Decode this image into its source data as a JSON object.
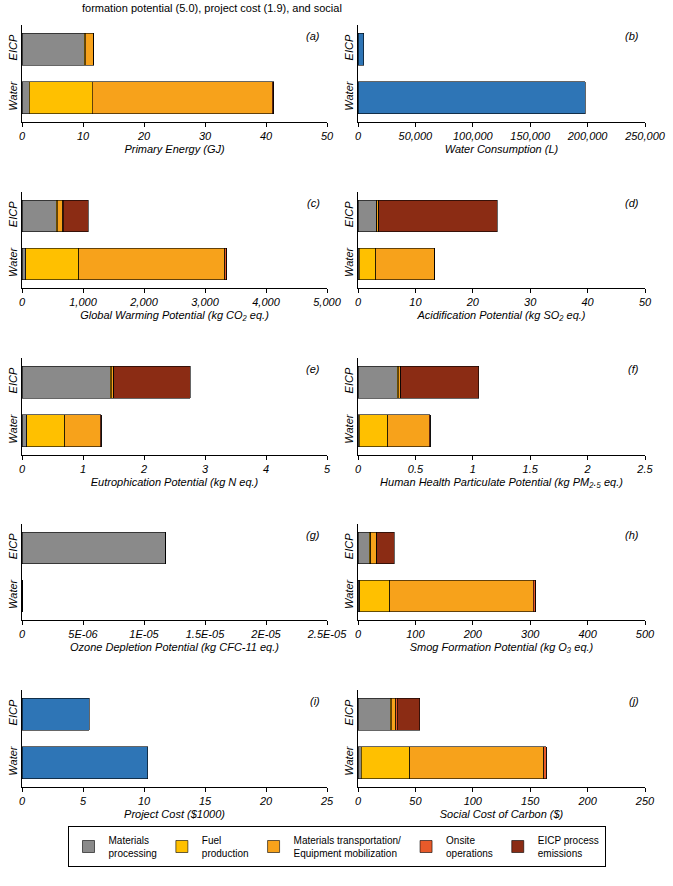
{
  "caption": "formation potential (5.0), project cost (1.9), and social",
  "chart_data": [
    {
      "type": "bar",
      "label": "(a)",
      "orientation": "horizontal",
      "stacked": true,
      "grid": false,
      "legend": "bottom",
      "categories": [
        "EICP",
        "Water"
      ],
      "xlabel": "Primary Energy (GJ)",
      "xlim": [
        0,
        50
      ],
      "xticks": [
        0,
        10,
        20,
        30,
        40,
        50
      ],
      "series": [
        {
          "name": "Materials\nprocessing",
          "color": "#8a8a8a",
          "values": [
            10.2,
            1.2
          ]
        },
        {
          "name": "Fuel\nproduction",
          "color": "#ffc000",
          "values": [
            0.2,
            10.3
          ]
        },
        {
          "name": "Materials transportation/\nEquipment mobilization",
          "color": "#f7a21b",
          "values": [
            1.3,
            29.5
          ]
        },
        {
          "name": "Onsite\noperations",
          "color": "#e85a2a",
          "values": [
            0.05,
            0.3
          ]
        },
        {
          "name": "EICP process\nemissions",
          "color": "#8b2c14",
          "values": [
            0,
            0
          ]
        }
      ]
    },
    {
      "type": "bar",
      "label": "(b)",
      "orientation": "horizontal",
      "stacked": true,
      "grid": false,
      "categories": [
        "EICP",
        "Water"
      ],
      "xlabel": "Water Consumption (L)",
      "xlim": [
        0,
        250000
      ],
      "xticks": [
        0,
        {
          "value": 50000,
          "label": "50,000"
        },
        {
          "value": 100000,
          "label": "100,000"
        },
        {
          "value": 150000,
          "label": "150,000"
        },
        {
          "value": 200000,
          "label": "200,000"
        },
        {
          "value": 250000,
          "label": "250,000"
        }
      ],
      "series": [
        {
          "color": "#2e75b6",
          "values": [
            5000,
            198000
          ]
        }
      ]
    },
    {
      "type": "bar",
      "label": "(c)",
      "orientation": "horizontal",
      "stacked": true,
      "grid": false,
      "categories": [
        "EICP",
        "Water"
      ],
      "xlabel": "Global Warming Potential (kg CO₂ eq.)",
      "xlim": [
        0,
        5000
      ],
      "xticks": [
        0,
        {
          "value": 1000,
          "label": "1,000"
        },
        {
          "value": 2000,
          "label": "2,000"
        },
        {
          "value": 3000,
          "label": "3,000"
        },
        {
          "value": 4000,
          "label": "4,000"
        },
        {
          "value": 5000,
          "label": "5,000"
        }
      ],
      "series": [
        {
          "name": "Materials\nprocessing",
          "color": "#8a8a8a",
          "values": [
            560,
            60
          ]
        },
        {
          "name": "Fuel\nproduction",
          "color": "#ffc000",
          "values": [
            20,
            870
          ]
        },
        {
          "name": "Materials transportation/\nEquipment mobilization",
          "color": "#f7a21b",
          "values": [
            90,
            2390
          ]
        },
        {
          "name": "Onsite\noperations",
          "color": "#e85a2a",
          "values": [
            5,
            40
          ]
        },
        {
          "name": "EICP process\nemissions",
          "color": "#8b2c14",
          "values": [
            410,
            0
          ]
        }
      ]
    },
    {
      "type": "bar",
      "label": "(d)",
      "orientation": "horizontal",
      "stacked": true,
      "grid": false,
      "categories": [
        "EICP",
        "Water"
      ],
      "xlabel": "Acidification Potential (kg SO₂ eq.)",
      "xlim": [
        0,
        50
      ],
      "xticks": [
        0,
        10,
        20,
        30,
        40,
        50
      ],
      "series": [
        {
          "name": "Materials\nprocessing",
          "color": "#8a8a8a",
          "values": [
            3.2,
            0.2
          ]
        },
        {
          "name": "Fuel\nproduction",
          "color": "#ffc000",
          "values": [
            0.1,
            2.9
          ]
        },
        {
          "name": "Materials transportation/\nEquipment mobilization",
          "color": "#f7a21b",
          "values": [
            0.3,
            10.2
          ]
        },
        {
          "name": "Onsite\noperations",
          "color": "#e85a2a",
          "values": [
            0.02,
            0.1
          ]
        },
        {
          "name": "EICP process\nemissions",
          "color": "#8b2c14",
          "values": [
            20.6,
            0
          ]
        }
      ]
    },
    {
      "type": "bar",
      "label": "(e)",
      "orientation": "horizontal",
      "stacked": true,
      "grid": false,
      "categories": [
        "EICP",
        "Water"
      ],
      "xlabel": "Eutrophication Potential (kg N eq.)",
      "xlim": [
        0,
        5
      ],
      "xticks": [
        0,
        1,
        2,
        3,
        4,
        5
      ],
      "series": [
        {
          "name": "Materials\nprocessing",
          "color": "#8a8a8a",
          "values": [
            1.45,
            0.08
          ]
        },
        {
          "name": "Fuel\nproduction",
          "color": "#ffc000",
          "values": [
            0.01,
            0.62
          ]
        },
        {
          "name": "Materials transportation/\nEquipment mobilization",
          "color": "#f7a21b",
          "values": [
            0.04,
            0.58
          ]
        },
        {
          "name": "Onsite\noperations",
          "color": "#e85a2a",
          "values": [
            0.005,
            0.02
          ]
        },
        {
          "name": "EICP process\nemissions",
          "color": "#8b2c14",
          "values": [
            1.25,
            0
          ]
        }
      ]
    },
    {
      "type": "bar",
      "label": "(f)",
      "orientation": "horizontal",
      "stacked": true,
      "grid": false,
      "categories": [
        "EICP",
        "Water"
      ],
      "xlabel": "Human Health Particulate Potential (kg PM₂.₅ eq.)",
      "xlim": [
        0,
        2.5
      ],
      "xticks": [
        0,
        0.5,
        1,
        1.5,
        2,
        2.5
      ],
      "series": [
        {
          "name": "Materials\nprocessing",
          "color": "#8a8a8a",
          "values": [
            0.34,
            0.01
          ]
        },
        {
          "name": "Fuel\nproduction",
          "color": "#ffc000",
          "values": [
            0.01,
            0.25
          ]
        },
        {
          "name": "Materials transportation/\nEquipment mobilization",
          "color": "#f7a21b",
          "values": [
            0.02,
            0.36
          ]
        },
        {
          "name": "Onsite\noperations",
          "color": "#e85a2a",
          "values": [
            0.002,
            0.01
          ]
        },
        {
          "name": "EICP process\nemissions",
          "color": "#8b2c14",
          "values": [
            0.68,
            0
          ]
        }
      ]
    },
    {
      "type": "bar",
      "label": "(g)",
      "orientation": "horizontal",
      "stacked": true,
      "grid": false,
      "categories": [
        "EICP",
        "Water"
      ],
      "xlabel": "Ozone Depletion Potential (kg CFC-11 eq.)",
      "xlim": [
        0,
        2.5e-05
      ],
      "xticks": [
        0,
        {
          "value": 5e-06,
          "label": "5E-06"
        },
        {
          "value": 1e-05,
          "label": "1E-05"
        },
        {
          "value": 1.5e-05,
          "label": "1.5E-05"
        },
        {
          "value": 2e-05,
          "label": "2E-05"
        },
        {
          "value": 2.5e-05,
          "label": "2.5E-05"
        }
      ],
      "series": [
        {
          "name": "Materials\nprocessing",
          "color": "#8a8a8a",
          "values": [
            1.18e-05,
            0
          ]
        },
        {
          "name": "Fuel\nproduction",
          "color": "#ffc000",
          "values": [
            0,
            0
          ]
        },
        {
          "name": "Materials transportation/\nEquipment mobilization",
          "color": "#f7a21b",
          "values": [
            0,
            0
          ]
        },
        {
          "name": "Onsite\noperations",
          "color": "#e85a2a",
          "values": [
            0,
            0
          ]
        },
        {
          "name": "EICP process\nemissions",
          "color": "#8b2c14",
          "values": [
            0,
            0
          ]
        }
      ]
    },
    {
      "type": "bar",
      "label": "(h)",
      "orientation": "horizontal",
      "stacked": true,
      "grid": false,
      "categories": [
        "EICP",
        "Water"
      ],
      "xlabel": "Smog Formation Potential (kg O₃ eq.)",
      "xlim": [
        0,
        500
      ],
      "xticks": [
        0,
        100,
        200,
        300,
        400,
        500
      ],
      "series": [
        {
          "name": "Materials\nprocessing",
          "color": "#8a8a8a",
          "values": [
            20,
            3
          ]
        },
        {
          "name": "Fuel\nproduction",
          "color": "#ffc000",
          "values": [
            2,
            52
          ]
        },
        {
          "name": "Materials transportation/\nEquipment mobilization",
          "color": "#f7a21b",
          "values": [
            10,
            250
          ]
        },
        {
          "name": "Onsite\noperations",
          "color": "#e85a2a",
          "values": [
            1,
            5
          ]
        },
        {
          "name": "EICP process\nemissions",
          "color": "#8b2c14",
          "values": [
            30,
            0
          ]
        }
      ]
    },
    {
      "type": "bar",
      "label": "(i)",
      "orientation": "horizontal",
      "stacked": true,
      "grid": false,
      "categories": [
        "EICP",
        "Water"
      ],
      "xlabel": "Project Cost ($1000)",
      "xlim": [
        0,
        25
      ],
      "xticks": [
        0,
        5,
        10,
        15,
        20,
        25
      ],
      "series": [
        {
          "color": "#2e75b6",
          "values": [
            5.5,
            10.3
          ]
        }
      ]
    },
    {
      "type": "bar",
      "label": "(j)",
      "orientation": "horizontal",
      "stacked": true,
      "grid": false,
      "categories": [
        "EICP",
        "Water"
      ],
      "xlabel": "Social Cost of Carbon ($)",
      "xlim": [
        0,
        250
      ],
      "xticks": [
        0,
        50,
        100,
        150,
        200,
        250
      ],
      "series": [
        {
          "name": "Materials\nprocessing",
          "color": "#8a8a8a",
          "values": [
            28,
            3
          ]
        },
        {
          "name": "Fuel\nproduction",
          "color": "#ffc000",
          "values": [
            1,
            42
          ]
        },
        {
          "name": "Materials transportation/\nEquipment mobilization",
          "color": "#f7a21b",
          "values": [
            4,
            117
          ]
        },
        {
          "name": "Onsite\noperations",
          "color": "#e85a2a",
          "values": [
            1,
            2
          ]
        },
        {
          "name": "EICP process\nemissions",
          "color": "#8b2c14",
          "values": [
            20,
            0
          ]
        }
      ]
    }
  ]
}
